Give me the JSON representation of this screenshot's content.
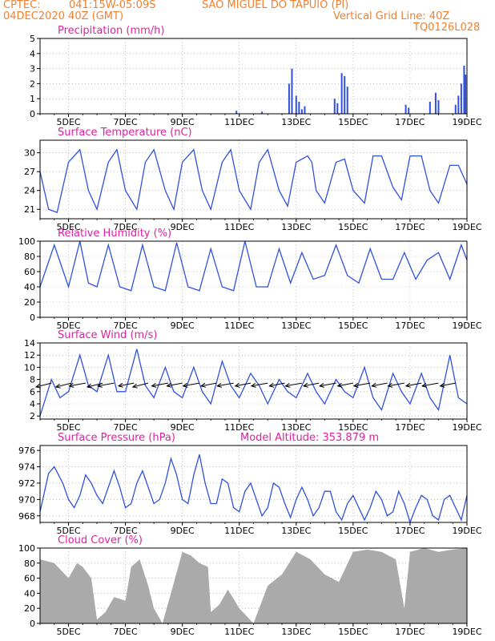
{
  "header": {
    "org": "CPTEC:",
    "coords": "041:15W-05:09S",
    "station": "SAO MIGUEL DO TAPUIO (PI)",
    "run": "04DEC2020 40Z (GMT)",
    "grid_note": "Vertical Grid Line: 40Z",
    "model_id": "TQ0126L028"
  },
  "colors": {
    "header": "#f08030",
    "title": "#e020a0",
    "line": "#3050e0",
    "cloud": "#aaaaaa",
    "axis": "#000000"
  },
  "chart_data": [
    {
      "type": "bar",
      "title": "Precipitation (mm/h)",
      "xticks": [
        "5DEC",
        "7DEC",
        "9DEC",
        "11DEC",
        "13DEC",
        "15DEC",
        "17DEC",
        "19DEC"
      ],
      "xlim": [
        0,
        15
      ],
      "ylim": [
        0,
        5
      ],
      "yticks": [
        0,
        1,
        2,
        3,
        4,
        5
      ],
      "x": [
        6.9,
        7.8,
        8.75,
        8.85,
        9.0,
        9.1,
        9.2,
        9.3,
        10.35,
        10.45,
        10.6,
        10.7,
        10.8,
        12.85,
        12.95,
        13.7,
        13.9,
        14.0,
        14.6,
        14.7,
        14.8,
        14.9,
        14.95
      ],
      "values": [
        0.2,
        0.15,
        2.0,
        3.0,
        1.2,
        0.8,
        0.3,
        0.5,
        1.0,
        0.7,
        2.7,
        2.5,
        1.8,
        0.6,
        0.4,
        0.8,
        1.4,
        0.9,
        0.6,
        1.2,
        2.0,
        3.2,
        2.6
      ]
    },
    {
      "type": "line",
      "title": "Surface Temperature (nC)",
      "xticks": [
        "5DEC",
        "7DEC",
        "9DEC",
        "11DEC",
        "13DEC",
        "15DEC",
        "17DEC",
        "19DEC"
      ],
      "xlim": [
        0,
        15
      ],
      "ylim": [
        19.5,
        32
      ],
      "yticks": [
        21,
        24,
        27,
        30
      ],
      "x": [
        0,
        0.3,
        0.6,
        1.0,
        1.4,
        1.7,
        2.0,
        2.4,
        2.7,
        3.0,
        3.4,
        3.7,
        4.0,
        4.4,
        4.7,
        5.0,
        5.4,
        5.7,
        6.0,
        6.4,
        6.7,
        7.0,
        7.4,
        7.7,
        8.0,
        8.4,
        8.7,
        9.0,
        9.4,
        9.55,
        9.7,
        10.0,
        10.4,
        10.7,
        11.0,
        11.4,
        11.7,
        12.0,
        12.4,
        12.7,
        13.0,
        13.4,
        13.7,
        14.0,
        14.4,
        14.7,
        15.0
      ],
      "values": [
        27,
        21,
        20.5,
        28.5,
        30.5,
        24,
        21,
        28.5,
        30.5,
        24,
        21,
        28.5,
        30.5,
        24,
        21,
        28.5,
        30.5,
        24,
        21,
        28.5,
        30.5,
        24,
        21,
        28.5,
        30.5,
        24,
        21.5,
        28.5,
        29.5,
        28.5,
        24,
        22,
        28.5,
        29,
        24,
        22,
        29.5,
        29.5,
        24.5,
        22.5,
        29.5,
        29.5,
        24,
        22,
        28,
        28,
        25
      ]
    },
    {
      "type": "line",
      "title": "Relative Humidity (%)",
      "xticks": [
        "5DEC",
        "7DEC",
        "9DEC",
        "11DEC",
        "13DEC",
        "15DEC",
        "17DEC",
        "19DEC"
      ],
      "xlim": [
        0,
        15
      ],
      "ylim": [
        0,
        100
      ],
      "yticks": [
        0,
        20,
        40,
        60,
        80,
        100
      ],
      "x": [
        0,
        0.5,
        1.0,
        1.4,
        1.7,
        2.0,
        2.4,
        2.8,
        3.2,
        3.6,
        4.0,
        4.4,
        4.8,
        5.2,
        5.6,
        6.0,
        6.4,
        6.8,
        7.2,
        7.6,
        8.0,
        8.4,
        8.8,
        9.2,
        9.6,
        10.0,
        10.4,
        10.8,
        11.2,
        11.6,
        12.0,
        12.4,
        12.8,
        13.2,
        13.6,
        14.0,
        14.4,
        14.8,
        15.0
      ],
      "values": [
        40,
        95,
        40,
        100,
        45,
        40,
        95,
        40,
        35,
        95,
        40,
        35,
        98,
        40,
        35,
        90,
        40,
        35,
        100,
        40,
        40,
        90,
        45,
        85,
        50,
        55,
        95,
        55,
        45,
        90,
        50,
        50,
        85,
        50,
        75,
        85,
        50,
        95,
        75
      ]
    },
    {
      "type": "line",
      "title": "Surface Wind (m/s)",
      "xticks": [
        "5DEC",
        "7DEC",
        "9DEC",
        "11DEC",
        "13DEC",
        "15DEC",
        "17DEC",
        "19DEC"
      ],
      "xlim": [
        0,
        15
      ],
      "ylim": [
        1.5,
        14
      ],
      "yticks": [
        2,
        4,
        6,
        8,
        10,
        12,
        14
      ],
      "x": [
        0,
        0.4,
        0.7,
        1.0,
        1.4,
        1.7,
        2.0,
        2.4,
        2.7,
        3.0,
        3.4,
        3.7,
        4.0,
        4.4,
        4.7,
        5.0,
        5.4,
        5.7,
        6.0,
        6.4,
        6.7,
        7.0,
        7.4,
        7.7,
        8.0,
        8.4,
        8.7,
        9.0,
        9.4,
        9.7,
        10.0,
        10.4,
        10.7,
        11.0,
        11.4,
        11.7,
        12.0,
        12.4,
        12.7,
        13.0,
        13.4,
        13.7,
        14.0,
        14.4,
        14.7,
        15.0
      ],
      "values": [
        2,
        8,
        5,
        6,
        12,
        7,
        6,
        12,
        6,
        6,
        13,
        7,
        5,
        10,
        6,
        5,
        10,
        6,
        4,
        11,
        7,
        5,
        9,
        7,
        4,
        8,
        6,
        5,
        9,
        6,
        4,
        8,
        6,
        5,
        10,
        5,
        3,
        9,
        6,
        4,
        9,
        5,
        3,
        12,
        5,
        4
      ],
      "vectors": [
        {
          "x": 0.4,
          "u": -1.6,
          "v": -0.4
        },
        {
          "x": 1.1,
          "u": -1.6,
          "v": -0.4
        },
        {
          "x": 1.6,
          "u": -1.7,
          "v": -0.3
        },
        {
          "x": 2.2,
          "u": -1.6,
          "v": -0.4
        },
        {
          "x": 2.6,
          "u": -1.7,
          "v": -0.3
        },
        {
          "x": 3.3,
          "u": -1.6,
          "v": -0.3
        },
        {
          "x": 3.8,
          "u": -1.6,
          "v": -0.4
        },
        {
          "x": 4.5,
          "u": -1.7,
          "v": -0.3
        },
        {
          "x": 5.0,
          "u": -1.6,
          "v": -0.3
        },
        {
          "x": 5.6,
          "u": -1.7,
          "v": -0.3
        },
        {
          "x": 6.2,
          "u": -1.6,
          "v": -0.3
        },
        {
          "x": 6.8,
          "u": -1.7,
          "v": -0.3
        },
        {
          "x": 7.4,
          "u": -1.6,
          "v": -0.3
        },
        {
          "x": 8.0,
          "u": -1.7,
          "v": -0.3
        },
        {
          "x": 8.6,
          "u": -1.6,
          "v": -0.3
        },
        {
          "x": 9.2,
          "u": -1.7,
          "v": -0.3
        },
        {
          "x": 9.8,
          "u": -1.6,
          "v": -0.3
        },
        {
          "x": 10.4,
          "u": -1.7,
          "v": -0.3
        },
        {
          "x": 11.0,
          "u": -1.6,
          "v": -0.3
        },
        {
          "x": 11.6,
          "u": -1.7,
          "v": -0.3
        },
        {
          "x": 12.2,
          "u": -1.6,
          "v": -0.3
        },
        {
          "x": 12.8,
          "u": -1.7,
          "v": -0.3
        },
        {
          "x": 13.4,
          "u": -1.6,
          "v": -0.3
        },
        {
          "x": 14.0,
          "u": -1.7,
          "v": -0.3
        },
        {
          "x": 14.6,
          "u": -1.6,
          "v": -0.3
        }
      ]
    },
    {
      "type": "line",
      "title": "Surface Pressure (hPa)",
      "annotation": "Model Altitude: 353.879 m",
      "xticks": [
        "5DEC",
        "7DEC",
        "9DEC",
        "11DEC",
        "13DEC",
        "15DEC",
        "17DEC",
        "19DEC"
      ],
      "xlim": [
        0,
        15
      ],
      "ylim": [
        967.2,
        976.6
      ],
      "yticks": [
        968,
        970,
        972,
        974,
        976
      ],
      "x": [
        0,
        0.3,
        0.5,
        0.8,
        1.0,
        1.2,
        1.4,
        1.6,
        1.8,
        2.0,
        2.2,
        2.4,
        2.6,
        2.8,
        3.0,
        3.2,
        3.4,
        3.6,
        3.8,
        4.0,
        4.2,
        4.4,
        4.6,
        4.8,
        5.0,
        5.2,
        5.4,
        5.6,
        5.8,
        6.0,
        6.2,
        6.4,
        6.6,
        6.8,
        7.0,
        7.2,
        7.4,
        7.6,
        7.8,
        8.0,
        8.2,
        8.4,
        8.6,
        8.8,
        9.0,
        9.2,
        9.4,
        9.6,
        9.8,
        10.0,
        10.2,
        10.4,
        10.6,
        10.8,
        11.0,
        11.2,
        11.4,
        11.6,
        11.8,
        12.0,
        12.2,
        12.4,
        12.6,
        12.8,
        13.0,
        13.2,
        13.4,
        13.6,
        13.8,
        14.0,
        14.2,
        14.4,
        14.6,
        14.8,
        15.0
      ],
      "values": [
        968.5,
        973.2,
        974.0,
        972.0,
        970.0,
        969.0,
        970.5,
        973.0,
        972.0,
        970.5,
        969.5,
        971.5,
        973.5,
        971.5,
        969.0,
        969.5,
        972.0,
        973.5,
        971.5,
        969.5,
        970.0,
        972.0,
        975.0,
        973.0,
        970.0,
        969.5,
        973.0,
        975.5,
        972.0,
        969.5,
        969.5,
        972.5,
        972.0,
        969.0,
        968.5,
        971.0,
        972.0,
        970.0,
        968.0,
        969.0,
        972.0,
        971.5,
        969.5,
        967.8,
        970.0,
        971.5,
        970.0,
        968.0,
        969.0,
        971.0,
        971.0,
        968.5,
        967.5,
        969.5,
        970.5,
        969.0,
        967.5,
        969.0,
        971.0,
        970.0,
        968.0,
        968.5,
        971.0,
        969.5,
        967.2,
        969.0,
        970.5,
        970.0,
        968.0,
        967.5,
        970.0,
        970.5,
        969.0,
        967.5,
        970.5
      ]
    },
    {
      "type": "area",
      "title": "Cloud Cover (%)",
      "xticks": [
        "5DEC",
        "7DEC",
        "9DEC",
        "11DEC",
        "13DEC",
        "15DEC",
        "17DEC",
        "19DEC"
      ],
      "xlim": [
        0,
        15
      ],
      "ylim": [
        0,
        100
      ],
      "yticks": [
        0,
        20,
        40,
        60,
        80,
        100
      ],
      "x": [
        0,
        0.5,
        1.0,
        1.3,
        1.5,
        1.8,
        2.0,
        2.3,
        2.6,
        3.0,
        3.2,
        3.5,
        3.8,
        4.0,
        4.3,
        4.6,
        5.0,
        5.3,
        5.6,
        5.9,
        6.0,
        6.3,
        6.6,
        7.0,
        7.5,
        8.0,
        8.5,
        9.0,
        9.5,
        10.0,
        10.5,
        11.0,
        11.5,
        12.0,
        12.5,
        12.8,
        13.0,
        13.5,
        14.0,
        14.5,
        15.0
      ],
      "values": [
        85,
        80,
        60,
        80,
        75,
        60,
        5,
        15,
        35,
        30,
        75,
        85,
        50,
        20,
        0,
        40,
        95,
        90,
        80,
        75,
        15,
        25,
        45,
        20,
        0,
        50,
        65,
        95,
        85,
        65,
        55,
        95,
        98,
        95,
        85,
        20,
        95,
        100,
        95,
        98,
        100
      ]
    }
  ]
}
